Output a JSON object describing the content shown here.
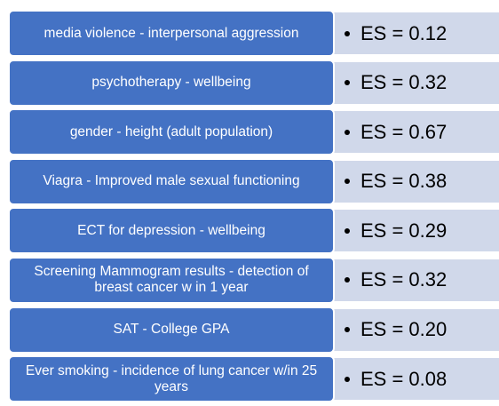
{
  "colors": {
    "label_fill": "#4472c4",
    "value_fill": "#d0d8ea",
    "label_text": "#ffffff",
    "value_text": "#000000"
  },
  "rows": [
    {
      "label": "media violence - interpersonal aggression",
      "value": "ES = 0.12"
    },
    {
      "label": "psychotherapy - wellbeing",
      "value": "ES = 0.32"
    },
    {
      "label": "gender - height (adult population)",
      "value": "ES = 0.67"
    },
    {
      "label": "Viagra - Improved male sexual functioning",
      "value": "ES = 0.38"
    },
    {
      "label": "ECT for depression - wellbeing",
      "value": "ES = 0.29"
    },
    {
      "label": "Screening Mammogram results - detection of breast cancer w in 1 year",
      "value": "ES = 0.32"
    },
    {
      "label": "SAT - College GPA",
      "value": "ES = 0.20"
    },
    {
      "label": "Ever smoking - incidence of lung cancer w/in 25 years",
      "value": "ES = 0.08"
    }
  ]
}
